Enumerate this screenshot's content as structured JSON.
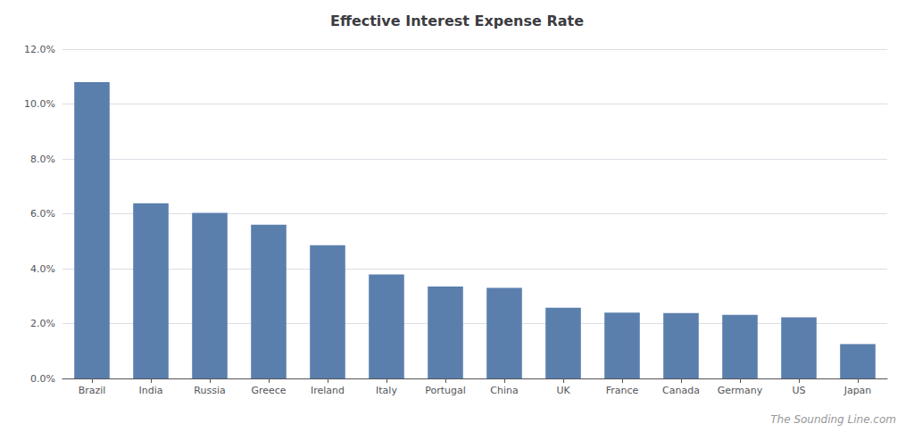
{
  "chart_data": {
    "type": "bar",
    "title": "Effective Interest Expense Rate",
    "categories": [
      "Brazil",
      "India",
      "Russia",
      "Greece",
      "Ireland",
      "Italy",
      "Portugal",
      "China",
      "UK",
      "France",
      "Canada",
      "Germany",
      "US",
      "Japan"
    ],
    "values": [
      0.108,
      0.0638,
      0.0603,
      0.056,
      0.0485,
      0.0379,
      0.0335,
      0.033,
      0.0258,
      0.024,
      0.0238,
      0.0232,
      0.0223,
      0.0125
    ],
    "color": "#5b7fad",
    "ylim": [
      0,
      0.12
    ],
    "yticks": [
      {
        "value": 0.0,
        "label": "0.0%"
      },
      {
        "value": 0.02,
        "label": "2.0%"
      },
      {
        "value": 0.04,
        "label": "4.0%"
      },
      {
        "value": 0.06,
        "label": "6.0%"
      },
      {
        "value": 0.08,
        "label": "8.0%"
      },
      {
        "value": 0.1,
        "label": "10.0%"
      },
      {
        "value": 0.12,
        "label": "12.0%"
      }
    ],
    "grid": true,
    "annotations": [
      "The Sounding Line.com"
    ]
  }
}
